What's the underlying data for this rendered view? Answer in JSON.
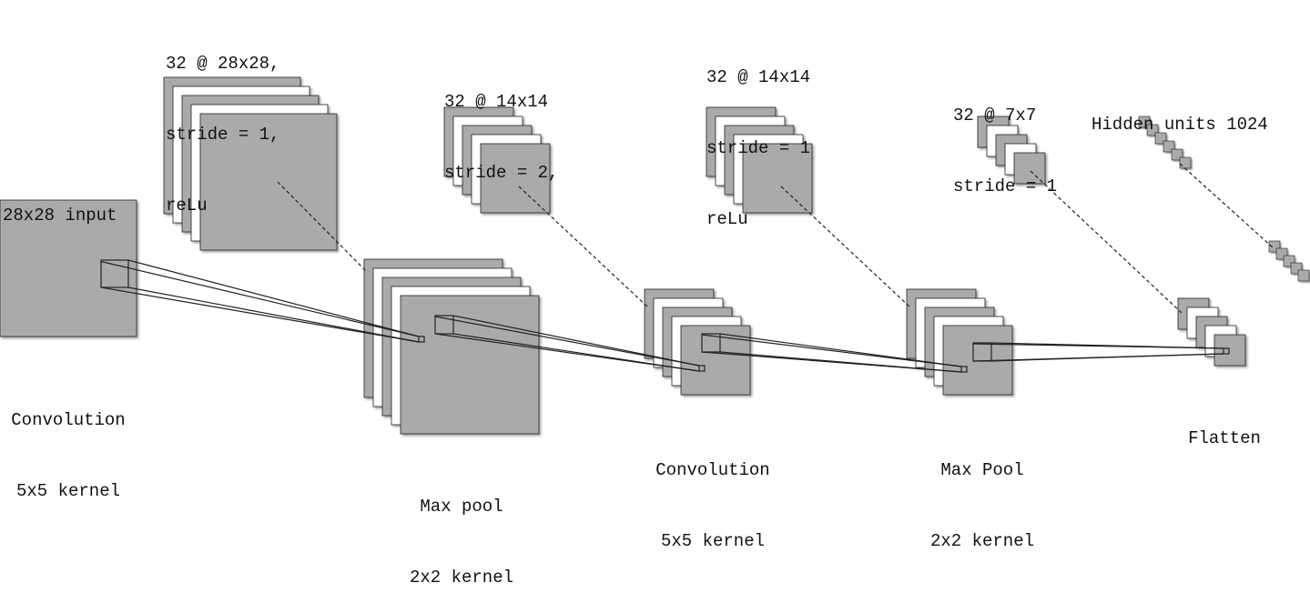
{
  "colors": {
    "fill": "#aaaaaa",
    "shadow": "#888888",
    "stroke": "#222222",
    "paper": "#ffffff"
  },
  "labels": {
    "input": [
      "28x28 input"
    ],
    "conv1_out": [
      "32 @ 28x28,",
      "stride = 1,",
      "reLu"
    ],
    "pool1_out": [
      "32 @ 14x14",
      "stride = 2,"
    ],
    "conv2_out": [
      "32 @ 14x14",
      "stride = 1",
      "reLu"
    ],
    "pool2_out": [
      "32 @ 7x7",
      "stride = 1"
    ],
    "hidden": [
      "Hidden units 1024"
    ],
    "conv1_op": [
      "Convolution",
      "5x5 kernel"
    ],
    "pool1_op": [
      "Max pool",
      "2x2 kernel"
    ],
    "conv2_op": [
      "Convolution",
      "5x5 kernel"
    ],
    "pool2_op": [
      "Max Pool",
      "2x2 kernel"
    ],
    "flatten_op": [
      "Flatten"
    ]
  }
}
